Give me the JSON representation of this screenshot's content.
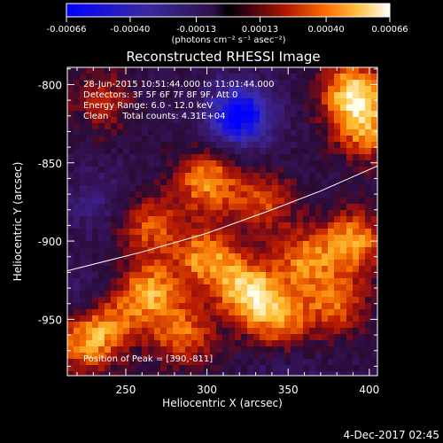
{
  "chart_data": {
    "type": "heatmap",
    "title": "Reconstructed RHESSI Image",
    "xlabel": "Heliocentric X (arcsec)",
    "ylabel": "Heliocentric Y (arcsec)",
    "xlim": [
      214,
      405
    ],
    "ylim": [
      -986,
      -789
    ],
    "x_ticks": [
      "250",
      "300",
      "350",
      "400"
    ],
    "x_tick_values": [
      250,
      300,
      350,
      400
    ],
    "y_ticks": [
      "-800",
      "-850",
      "-900",
      "-950"
    ],
    "y_tick_values": [
      -800,
      -850,
      -900,
      -950
    ],
    "annotations": [
      "28-Jun-2015 10:51:44.000 to 11:01:44.000",
      "Detectors: 3F 5F 6F 7F 8F 9F, Att 0",
      "Energy Range: 6.0 - 12.0 keV",
      "Clean     Total counts: 4.31E+04"
    ],
    "peak_label": "Position of Peak = [390,-811]",
    "peak": [
      390,
      -811
    ],
    "limb_curve": [
      [
        214,
        -919
      ],
      [
        260,
        -907
      ],
      [
        300,
        -895
      ],
      [
        340,
        -880
      ],
      [
        370,
        -868
      ],
      [
        405,
        -852
      ]
    ],
    "colorbar": {
      "ticks": [
        "-0.00066",
        "-0.00040",
        "-0.00013",
        "0.00013",
        "0.00040",
        "0.00066"
      ],
      "tick_values": [
        -0.00066,
        -0.0004,
        -0.00013,
        0.00013,
        0.0004,
        0.00066
      ],
      "range": [
        -0.00066,
        0.00066
      ],
      "unit_label": "(photons cm⁻² s⁻¹ asec⁻²)"
    },
    "sources": [
      {
        "x": 390,
        "y": -805,
        "value": 0.00062
      },
      {
        "x": 398,
        "y": -830,
        "value": 0.00045
      },
      {
        "x": 325,
        "y": -932,
        "value": 0.0006
      },
      {
        "x": 265,
        "y": -932,
        "value": 0.0005
      },
      {
        "x": 300,
        "y": -910,
        "value": 0.0005
      },
      {
        "x": 345,
        "y": -950,
        "value": 0.00045
      },
      {
        "x": 390,
        "y": -900,
        "value": 0.0005
      },
      {
        "x": 300,
        "y": -862,
        "value": 0.0005
      },
      {
        "x": 360,
        "y": -912,
        "value": 0.00042
      },
      {
        "x": 240,
        "y": -950,
        "value": 0.0004
      },
      {
        "x": 225,
        "y": -965,
        "value": 0.00045
      },
      {
        "x": 335,
        "y": -875,
        "value": 0.00035
      },
      {
        "x": 265,
        "y": -890,
        "value": 0.00038
      },
      {
        "x": 285,
        "y": -960,
        "value": 0.00042
      },
      {
        "x": 380,
        "y": -940,
        "value": 0.0004
      },
      {
        "x": 235,
        "y": -810,
        "value": 0.00028
      },
      {
        "x": 320,
        "y": -820,
        "value": -0.00062
      },
      {
        "x": 233,
        "y": -875,
        "value": -0.00015
      },
      {
        "x": 350,
        "y": -985,
        "value": -0.0001
      },
      {
        "x": 230,
        "y": -940,
        "value": -0.00022
      }
    ]
  },
  "footer": {
    "date": "4-Dec-2017 02:45"
  }
}
